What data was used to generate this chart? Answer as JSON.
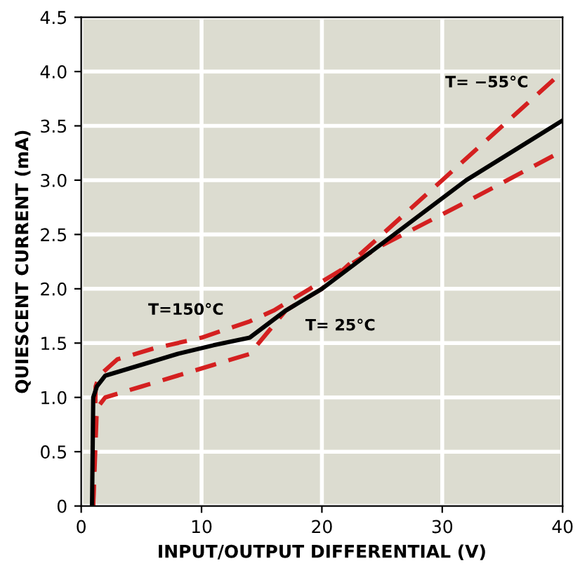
{
  "chart_data": {
    "type": "line",
    "xlabel": "INPUT/OUTPUT DIFFERENTIAL (V)",
    "ylabel": "QUIESCENT CURRENT (mA)",
    "xlim": [
      0,
      40
    ],
    "ylim": [
      0,
      4.5
    ],
    "xticks": [
      0,
      10,
      20,
      30,
      40
    ],
    "yticks": [
      0,
      0.5,
      {
        "value": 1,
        "label": "1.0"
      },
      1.5,
      {
        "value": 2,
        "label": "2.0"
      },
      2.5,
      {
        "value": 3,
        "label": "3.0"
      },
      3.5,
      {
        "value": 4,
        "label": "4.0"
      },
      4.5
    ],
    "grid": true,
    "legend": false,
    "series": [
      {
        "color": "#d42020",
        "line_style": "dashed",
        "x": [
          1,
          1.2,
          1.5,
          3,
          6,
          10,
          14,
          16,
          19,
          25,
          32,
          40
        ],
        "values": [
          0,
          1.1,
          1.2,
          1.35,
          1.45,
          1.55,
          1.7,
          1.8,
          2.0,
          2.4,
          2.8,
          3.27
        ]
      },
      {
        "color": "#d42020",
        "line_style": "dashed",
        "x": [
          1,
          1.3,
          2,
          5,
          8,
          11,
          14,
          17,
          20,
          25,
          30,
          35,
          40
        ],
        "values": [
          0,
          0.9,
          1.0,
          1.1,
          1.2,
          1.3,
          1.4,
          1.8,
          2.0,
          2.5,
          3.0,
          3.5,
          4.0
        ]
      },
      {
        "color": "#000000",
        "line_style": "solid",
        "x": [
          0.9,
          1.0,
          1.3,
          2,
          5,
          8,
          11,
          14,
          17,
          20,
          26,
          32,
          40
        ],
        "values": [
          0,
          1.0,
          1.1,
          1.2,
          1.3,
          1.4,
          1.48,
          1.55,
          1.8,
          2.0,
          2.5,
          3.0,
          3.55
        ]
      }
    ],
    "annotations": [
      {
        "text": "T= −55°C",
        "x": 35,
        "y": 3.5
      },
      {
        "text": "T=150°C",
        "x": 10,
        "y": 1.55
      },
      {
        "text": "T= 25°C",
        "x": 17,
        "y": 1.8
      }
    ]
  }
}
